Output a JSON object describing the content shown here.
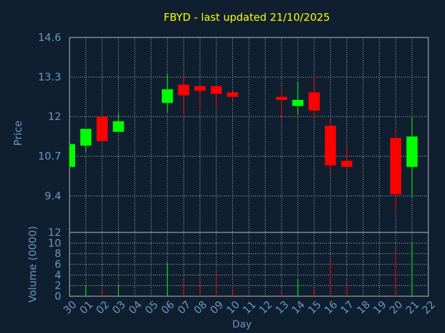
{
  "colors": {
    "background": "#0f1f30",
    "title": "#ffff00",
    "axis_text": "#6f95bc",
    "grid": "#bdbdbd",
    "up": "#00ff00",
    "down": "#ff0000"
  },
  "chart_data": [
    {
      "type": "candlestick",
      "title": "FBYD - last updated 21/10/2025",
      "ylabel": "Price",
      "ylim": [
        8.2,
        14.6
      ],
      "yticks": [
        14.6,
        13.3,
        12,
        10.7,
        9.4
      ],
      "categories": [
        "30",
        "01",
        "02",
        "03",
        "04",
        "05",
        "06",
        "07",
        "08",
        "09",
        "10",
        "11",
        "12",
        "13",
        "14",
        "15",
        "16",
        "17",
        "18",
        "19",
        "20",
        "21",
        "22"
      ],
      "candles": [
        {
          "x": "30",
          "open": 10.35,
          "close": 11.1,
          "high": 11.1,
          "low": 10.35
        },
        {
          "x": "01",
          "open": 11.05,
          "close": 11.6,
          "high": 11.6,
          "low": 10.85
        },
        {
          "x": "02",
          "open": 12.0,
          "close": 11.2,
          "high": 12.0,
          "low": 11.2
        },
        {
          "x": "03",
          "open": 11.5,
          "close": 11.85,
          "high": 12.1,
          "low": 11.5
        },
        {
          "x": "06",
          "open": 12.45,
          "close": 12.9,
          "high": 13.4,
          "low": 12.15
        },
        {
          "x": "07",
          "open": 13.05,
          "close": 12.7,
          "high": 13.4,
          "low": 12.05
        },
        {
          "x": "08",
          "open": 13.0,
          "close": 12.85,
          "high": 13.0,
          "low": 12.25
        },
        {
          "x": "09",
          "open": 13.0,
          "close": 12.75,
          "high": 13.0,
          "low": 12.3
        },
        {
          "x": "10",
          "open": 12.8,
          "close": 12.65,
          "high": 12.8,
          "low": 12.55
        },
        {
          "x": "13",
          "open": 12.65,
          "close": 12.55,
          "high": 13.0,
          "low": 12.0
        },
        {
          "x": "14",
          "open": 12.35,
          "close": 12.55,
          "high": 13.15,
          "low": 12.05
        },
        {
          "x": "15",
          "open": 12.8,
          "close": 12.2,
          "high": 13.3,
          "low": 11.9
        },
        {
          "x": "16",
          "open": 11.7,
          "close": 10.4,
          "high": 11.9,
          "low": 10.15
        },
        {
          "x": "17",
          "open": 10.55,
          "close": 10.35,
          "high": 11.05,
          "low": 10.35
        },
        {
          "x": "20",
          "open": 11.3,
          "close": 9.45,
          "high": 11.6,
          "low": 8.9
        },
        {
          "x": "21",
          "open": 10.35,
          "close": 11.35,
          "high": 12.0,
          "low": 9.35
        }
      ]
    },
    {
      "type": "bar",
      "ylabel": "Volume (0000)",
      "xlabel": "Day",
      "ylim": [
        0,
        12
      ],
      "yticks": [
        12,
        10,
        8,
        6,
        4,
        2,
        0
      ],
      "bars": [
        {
          "x": "01",
          "value": 2.1,
          "dir": "up"
        },
        {
          "x": "02",
          "value": 1.7,
          "dir": "down"
        },
        {
          "x": "03",
          "value": 2.2,
          "dir": "up"
        },
        {
          "x": "06",
          "value": 6.3,
          "dir": "up"
        },
        {
          "x": "07",
          "value": 3.1,
          "dir": "down"
        },
        {
          "x": "08",
          "value": 2.7,
          "dir": "down"
        },
        {
          "x": "09",
          "value": 4.4,
          "dir": "down"
        },
        {
          "x": "10",
          "value": 2.0,
          "dir": "down"
        },
        {
          "x": "13",
          "value": 1.0,
          "dir": "down"
        },
        {
          "x": "14",
          "value": 3.2,
          "dir": "up"
        },
        {
          "x": "15",
          "value": 1.5,
          "dir": "down"
        },
        {
          "x": "16",
          "value": 7.1,
          "dir": "down"
        },
        {
          "x": "17",
          "value": 2.3,
          "dir": "down"
        },
        {
          "x": "20",
          "value": 8.6,
          "dir": "down"
        },
        {
          "x": "21",
          "value": 10.2,
          "dir": "up"
        }
      ]
    }
  ]
}
